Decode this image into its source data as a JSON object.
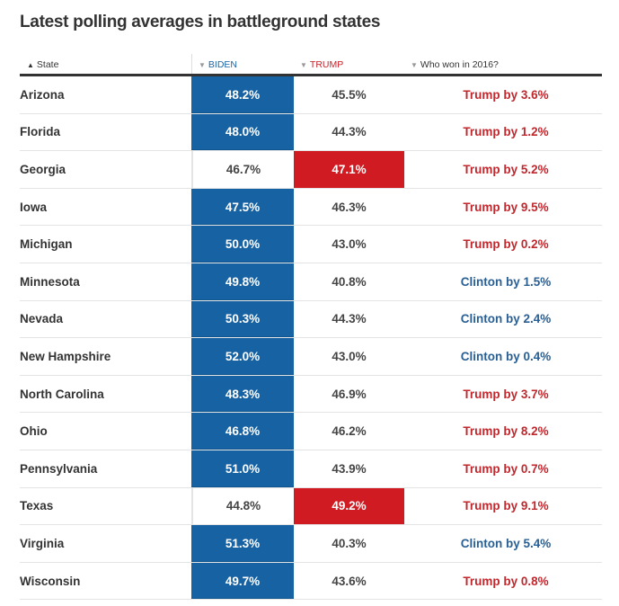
{
  "title": "Latest polling averages in battleground states",
  "colors": {
    "biden": "#1762a3",
    "trump": "#cf1b21",
    "clinton_text": "#2a5f93",
    "trump_text": "#c0282e"
  },
  "chart_data": {
    "type": "table",
    "title": "Latest polling averages in battleground states",
    "columns": [
      {
        "label": "State",
        "sort_icon": "triangle-up-icon"
      },
      {
        "label": "BIDEN",
        "sort_icon": "triangle-down-icon"
      },
      {
        "label": "TRUMP",
        "sort_icon": "triangle-down-icon"
      },
      {
        "label": "Who won in 2016?",
        "sort_icon": "triangle-down-icon"
      }
    ],
    "rows": [
      {
        "state": "Arizona",
        "biden": "48.2%",
        "trump": "45.5%",
        "won2016": "Trump by 3.6%",
        "winner2016": "Trump",
        "leader": "Biden"
      },
      {
        "state": "Florida",
        "biden": "48.0%",
        "trump": "44.3%",
        "won2016": "Trump by 1.2%",
        "winner2016": "Trump",
        "leader": "Biden"
      },
      {
        "state": "Georgia",
        "biden": "46.7%",
        "trump": "47.1%",
        "won2016": "Trump by 5.2%",
        "winner2016": "Trump",
        "leader": "Trump"
      },
      {
        "state": "Iowa",
        "biden": "47.5%",
        "trump": "46.3%",
        "won2016": "Trump by 9.5%",
        "winner2016": "Trump",
        "leader": "Biden"
      },
      {
        "state": "Michigan",
        "biden": "50.0%",
        "trump": "43.0%",
        "won2016": "Trump by 0.2%",
        "winner2016": "Trump",
        "leader": "Biden"
      },
      {
        "state": "Minnesota",
        "biden": "49.8%",
        "trump": "40.8%",
        "won2016": "Clinton by 1.5%",
        "winner2016": "Clinton",
        "leader": "Biden"
      },
      {
        "state": "Nevada",
        "biden": "50.3%",
        "trump": "44.3%",
        "won2016": "Clinton by 2.4%",
        "winner2016": "Clinton",
        "leader": "Biden"
      },
      {
        "state": "New Hampshire",
        "biden": "52.0%",
        "trump": "43.0%",
        "won2016": "Clinton by 0.4%",
        "winner2016": "Clinton",
        "leader": "Biden"
      },
      {
        "state": "North Carolina",
        "biden": "48.3%",
        "trump": "46.9%",
        "won2016": "Trump by 3.7%",
        "winner2016": "Trump",
        "leader": "Biden"
      },
      {
        "state": "Ohio",
        "biden": "46.8%",
        "trump": "46.2%",
        "won2016": "Trump by 8.2%",
        "winner2016": "Trump",
        "leader": "Biden"
      },
      {
        "state": "Pennsylvania",
        "biden": "51.0%",
        "trump": "43.9%",
        "won2016": "Trump by 0.7%",
        "winner2016": "Trump",
        "leader": "Biden"
      },
      {
        "state": "Texas",
        "biden": "44.8%",
        "trump": "49.2%",
        "won2016": "Trump by 9.1%",
        "winner2016": "Trump",
        "leader": "Trump"
      },
      {
        "state": "Virginia",
        "biden": "51.3%",
        "trump": "40.3%",
        "won2016": "Clinton by 5.4%",
        "winner2016": "Clinton",
        "leader": "Biden"
      },
      {
        "state": "Wisconsin",
        "biden": "49.7%",
        "trump": "43.6%",
        "won2016": "Trump by 0.8%",
        "winner2016": "Trump",
        "leader": "Biden"
      }
    ]
  }
}
